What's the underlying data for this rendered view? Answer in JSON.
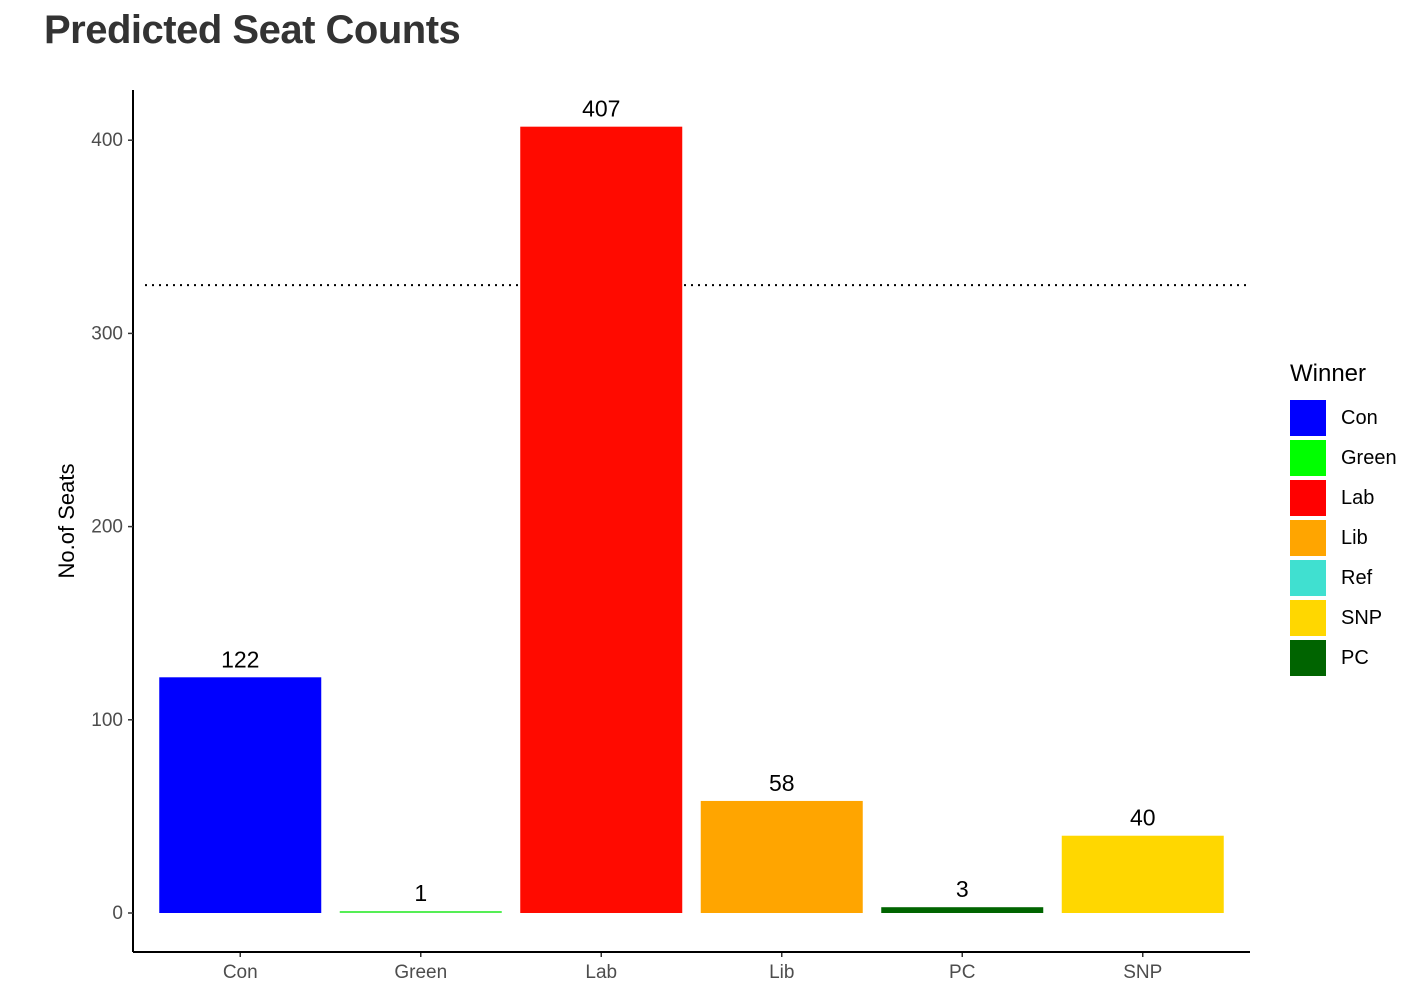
{
  "title": "Predicted Seat Counts",
  "chart_data": {
    "type": "bar",
    "categories": [
      "Con",
      "Green",
      "Lab",
      "Lib",
      "PC",
      "SNP"
    ],
    "values": [
      122,
      1,
      407,
      58,
      3,
      40
    ],
    "data_labels": [
      "122",
      "1",
      "407",
      "58",
      "3",
      "40"
    ],
    "bar_colors": [
      "#0000ff",
      "#55ee55",
      "#ff0a00",
      "#ffa500",
      "#006400",
      "#ffd700"
    ],
    "ylabel": "No.of Seats",
    "xlabel": "",
    "ylim": [
      0,
      424
    ],
    "yticks": [
      0,
      100,
      200,
      300,
      400
    ],
    "ytick_labels": [
      "0",
      "100",
      "200",
      "300",
      "400"
    ],
    "reference_line": {
      "y": 325,
      "style": "dotted"
    },
    "grid": false,
    "legend": {
      "title": "Winner",
      "placement": "right",
      "items": [
        {
          "label": "Con",
          "color": "#0000ff"
        },
        {
          "label": "Green",
          "color": "#00ff00"
        },
        {
          "label": "Lab",
          "color": "#ff0000"
        },
        {
          "label": "Lib",
          "color": "#ffa500"
        },
        {
          "label": "Ref",
          "color": "#40e0d0"
        },
        {
          "label": "SNP",
          "color": "#ffd700"
        },
        {
          "label": "PC",
          "color": "#006400"
        }
      ]
    }
  }
}
